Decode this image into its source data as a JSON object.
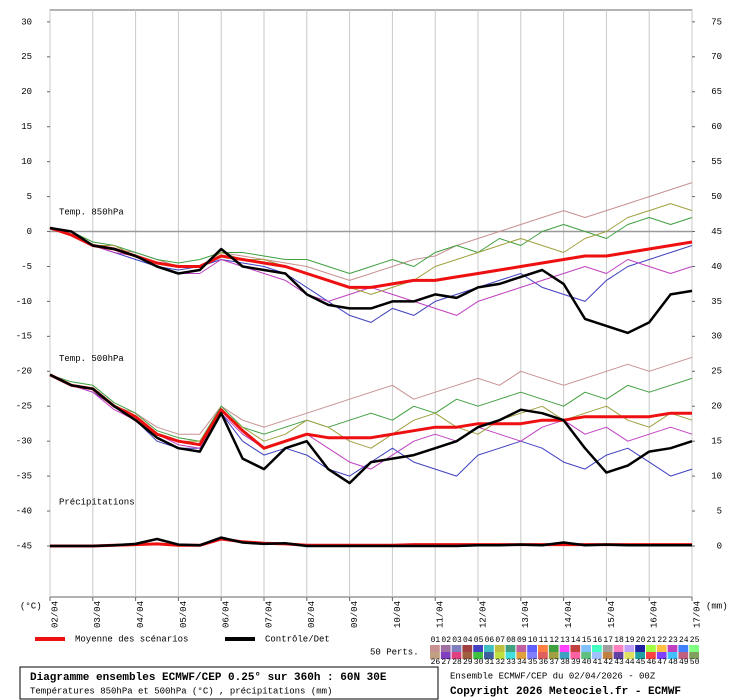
{
  "chart_data": {
    "type": "line",
    "title": "Diagramme ensembles ECMWF/CEP 0.25° sur 360h : 60N 30E",
    "subtitle": "Températures 850hPa et 500hPa (°C) , précipitations (mm)",
    "run_info": "Ensemble ECMWF/CEP du 02/04/2026 - 00Z",
    "copyright": "Copyright 2026 Meteociel.fr - ECMWF",
    "ylabel": "(°C)",
    "y2label": "(mm)",
    "annotations": [
      {
        "text": "Temp. 850hPa",
        "y": 0.5
      },
      {
        "text": "Temp. 500hPa",
        "y": -20.5
      },
      {
        "text": "Précipitations",
        "y": -41
      }
    ],
    "x": [
      0,
      0.5,
      1,
      1.5,
      2,
      2.5,
      3,
      3.5,
      4,
      4.5,
      5,
      5.5,
      6,
      6.5,
      7,
      7.5,
      8,
      8.5,
      9,
      9.5,
      10,
      10.5,
      11,
      11.5,
      12,
      12.5,
      13,
      13.5,
      14,
      14.5,
      15
    ],
    "xlim": [
      0,
      15
    ],
    "xticks": [
      {
        "value": 0,
        "label": "02/04"
      },
      {
        "value": 1,
        "label": "03/04"
      },
      {
        "value": 2,
        "label": "04/04"
      },
      {
        "value": 3,
        "label": "05/04"
      },
      {
        "value": 4,
        "label": "06/04"
      },
      {
        "value": 5,
        "label": "07/04"
      },
      {
        "value": 6,
        "label": "08/04"
      },
      {
        "value": 7,
        "label": "09/04"
      },
      {
        "value": 8,
        "label": "10/04"
      },
      {
        "value": 9,
        "label": "11/04"
      },
      {
        "value": 10,
        "label": "12/04"
      },
      {
        "value": 11,
        "label": "13/04"
      },
      {
        "value": 12,
        "label": "14/04"
      },
      {
        "value": 13,
        "label": "15/04"
      },
      {
        "value": 14,
        "label": "16/04"
      },
      {
        "value": 15,
        "label": "17/04"
      }
    ],
    "ylim": [
      -52.3,
      31.7
    ],
    "yticks": [
      30,
      25,
      20,
      15,
      10,
      5,
      0,
      -5,
      -10,
      -15,
      -20,
      -25,
      -30,
      -35,
      -40,
      -45
    ],
    "y2lim": [
      -7.3,
      76.7
    ],
    "y2ticks": [
      75,
      70,
      65,
      60,
      55,
      50,
      45,
      40,
      35,
      30,
      25,
      20,
      15,
      10,
      5,
      0
    ],
    "reference_line": 0,
    "grid": true,
    "legend": [
      {
        "name": "Moyenne des scénarios",
        "color": "#ee1010"
      },
      {
        "name": "Contrôle/Det",
        "color": "#000000"
      }
    ],
    "perturbation_count_label": "50 Perts.",
    "perturbation_legend": [
      {
        "label": "01",
        "color": "#c89090"
      },
      {
        "label": "02",
        "color": "#a070a0"
      },
      {
        "label": "03",
        "color": "#8080c0"
      },
      {
        "label": "04",
        "color": "#a04040"
      },
      {
        "label": "05",
        "color": "#4040c0"
      },
      {
        "label": "06",
        "color": "#40c0c0"
      },
      {
        "label": "07",
        "color": "#c0c040"
      },
      {
        "label": "08",
        "color": "#40a080"
      },
      {
        "label": "09",
        "color": "#c060a0"
      },
      {
        "label": "10",
        "color": "#6060ff"
      },
      {
        "label": "11",
        "color": "#ff8040"
      },
      {
        "label": "12",
        "color": "#40a040"
      },
      {
        "label": "13",
        "color": "#ff40ff"
      },
      {
        "label": "14",
        "color": "#c04040"
      },
      {
        "label": "15",
        "color": "#80c0ff"
      },
      {
        "label": "16",
        "color": "#40ffc0"
      },
      {
        "label": "17",
        "color": "#a0a0a0"
      },
      {
        "label": "18",
        "color": "#ff80c0"
      },
      {
        "label": "19",
        "color": "#c0a0ff"
      },
      {
        "label": "20",
        "color": "#2020a0"
      },
      {
        "label": "21",
        "color": "#a0ff40"
      },
      {
        "label": "22",
        "color": "#ffc040"
      },
      {
        "label": "23",
        "color": "#c040c0"
      },
      {
        "label": "24",
        "color": "#4080ff"
      },
      {
        "label": "25",
        "color": "#80ff80"
      },
      {
        "label": "26",
        "color": "#c0a080"
      },
      {
        "label": "27",
        "color": "#8040c0"
      },
      {
        "label": "28",
        "color": "#e04080"
      },
      {
        "label": "29",
        "color": "#a06040"
      },
      {
        "label": "30",
        "color": "#40c040"
      },
      {
        "label": "31",
        "color": "#4060a0"
      },
      {
        "label": "32",
        "color": "#c0e040"
      },
      {
        "label": "33",
        "color": "#40e0e0"
      },
      {
        "label": "34",
        "color": "#e0a040"
      },
      {
        "label": "35",
        "color": "#8080ff"
      },
      {
        "label": "36",
        "color": "#e06060"
      },
      {
        "label": "37",
        "color": "#a0a040"
      },
      {
        "label": "38",
        "color": "#40a0c0"
      },
      {
        "label": "39",
        "color": "#ff60a0"
      },
      {
        "label": "40",
        "color": "#60c080"
      },
      {
        "label": "41",
        "color": "#a0c0ff"
      },
      {
        "label": "42",
        "color": "#c08040"
      },
      {
        "label": "43",
        "color": "#6040a0"
      },
      {
        "label": "44",
        "color": "#e0e060"
      },
      {
        "label": "45",
        "color": "#20a0a0"
      },
      {
        "label": "46",
        "color": "#ff4040"
      },
      {
        "label": "47",
        "color": "#8040ff"
      },
      {
        "label": "48",
        "color": "#40c0ff"
      },
      {
        "label": "49",
        "color": "#c06080"
      },
      {
        "label": "50",
        "color": "#80a060"
      }
    ],
    "series": [
      {
        "name": "01",
        "color": "#c89090",
        "width": 1,
        "values": [
          0.5,
          0,
          -2,
          -2.5,
          -3,
          -4,
          -5,
          -5,
          -3,
          -3.5,
          -4,
          -4.5,
          -5,
          -6,
          -7,
          -6,
          -5,
          -4,
          -3.5,
          -2,
          -1,
          0,
          1,
          2,
          3,
          2,
          3,
          4,
          5,
          6,
          7
        ]
      },
      {
        "name": "05",
        "color": "#4040c0",
        "width": 1,
        "values": [
          0.5,
          -0.5,
          -2,
          -3,
          -4,
          -5,
          -5.5,
          -5,
          -4,
          -4.5,
          -5,
          -6,
          -8,
          -10,
          -12,
          -13,
          -11,
          -12,
          -10,
          -9,
          -8,
          -7,
          -6,
          -8,
          -9,
          -10,
          -7,
          -5,
          -4,
          -3,
          -2
        ]
      },
      {
        "name": "12",
        "color": "#40a040",
        "width": 1,
        "values": [
          0.5,
          0,
          -1.5,
          -2,
          -3,
          -4,
          -4.5,
          -4,
          -3,
          -3,
          -3.5,
          -4,
          -4,
          -5,
          -6,
          -5,
          -4,
          -5,
          -3,
          -2,
          -3,
          -1,
          -2,
          0,
          1,
          0,
          -1,
          1,
          2,
          1,
          2
        ]
      },
      {
        "name": "23",
        "color": "#c040c0",
        "width": 1,
        "values": [
          0.5,
          -0.5,
          -2,
          -3,
          -3.5,
          -5,
          -6,
          -6,
          -4,
          -5,
          -6,
          -7,
          -9,
          -10,
          -9,
          -8,
          -9,
          -10,
          -11,
          -12,
          -10,
          -9,
          -8,
          -7,
          -6,
          -5,
          -6,
          -4,
          -5,
          -6,
          -5
        ]
      },
      {
        "name": "37",
        "color": "#a0a040",
        "width": 1,
        "values": [
          0.5,
          0,
          -2,
          -2,
          -3.5,
          -4.5,
          -5,
          -5,
          -3,
          -4,
          -4,
          -5,
          -6,
          -7,
          -8,
          -9,
          -8,
          -7,
          -5,
          -4,
          -3,
          -2,
          -1,
          -2,
          -3,
          -1,
          0,
          2,
          3,
          4,
          3
        ]
      },
      {
        "name": "01",
        "color": "#c89090",
        "width": 1,
        "values": [
          -20.5,
          -22,
          -22.5,
          -25,
          -26,
          -28,
          -29,
          -29,
          -25,
          -27,
          -28,
          -27,
          -26,
          -25,
          -24,
          -23,
          -22,
          -24,
          -23,
          -22,
          -21,
          -22,
          -20,
          -21,
          -22,
          -21,
          -20,
          -19,
          -20,
          -19,
          -18
        ]
      },
      {
        "name": "05",
        "color": "#4040c0",
        "width": 1,
        "values": [
          -20.5,
          -22,
          -23,
          -25,
          -27,
          -30,
          -31,
          -31,
          -26,
          -30,
          -32,
          -31,
          -32,
          -34,
          -35,
          -33,
          -31,
          -33,
          -34,
          -35,
          -32,
          -31,
          -30,
          -31,
          -33,
          -34,
          -32,
          -31,
          -33,
          -35,
          -34
        ]
      },
      {
        "name": "12",
        "color": "#40a040",
        "width": 1,
        "values": [
          -20.5,
          -21.5,
          -22,
          -24.5,
          -26,
          -28.5,
          -29.5,
          -30,
          -25,
          -28,
          -29,
          -28,
          -27,
          -28,
          -27,
          -26,
          -27,
          -25,
          -26,
          -24,
          -25,
          -24,
          -23,
          -24,
          -25,
          -23,
          -24,
          -22,
          -23,
          -22,
          -21
        ]
      },
      {
        "name": "23",
        "color": "#c040c0",
        "width": 1,
        "values": [
          -20.5,
          -22,
          -23,
          -25.5,
          -27,
          -29,
          -30.5,
          -31,
          -26,
          -29,
          -31,
          -30,
          -29,
          -31,
          -33,
          -34,
          -32,
          -30,
          -29,
          -30,
          -28,
          -29,
          -30,
          -28,
          -27,
          -29,
          -28,
          -30,
          -29,
          -28,
          -29
        ]
      },
      {
        "name": "37",
        "color": "#a0a040",
        "width": 1,
        "values": [
          -20.5,
          -22,
          -22.5,
          -25,
          -26.5,
          -29,
          -30,
          -30,
          -25.5,
          -28,
          -30,
          -29,
          -27,
          -28,
          -30,
          -31,
          -29,
          -27,
          -26,
          -28,
          -29,
          -27,
          -26,
          -25,
          -27,
          -26,
          -25,
          -27,
          -28,
          -26,
          -27
        ]
      },
      {
        "name": "Moyenne des scénarios",
        "color": "#ee1010",
        "width": 3,
        "values": [
          0.5,
          -0.5,
          -2,
          -2.5,
          -3.5,
          -4.5,
          -5,
          -5,
          -3.5,
          -4,
          -4.5,
          -5,
          -6,
          -7,
          -8,
          -8,
          -7.5,
          -7,
          -7,
          -6.5,
          -6,
          -5.5,
          -5,
          -4.5,
          -4,
          -3.5,
          -3.5,
          -3,
          -2.5,
          -2,
          -1.5
        ]
      },
      {
        "name": "Moyenne des scénarios",
        "color": "#ee1010",
        "width": 3,
        "values": [
          -20.5,
          -22,
          -22.5,
          -25,
          -26.5,
          -29,
          -30,
          -30.5,
          -25.5,
          -28.5,
          -31,
          -30,
          -29,
          -29.5,
          -29.5,
          -29.5,
          -29,
          -28.5,
          -28,
          -28,
          -27.5,
          -27.5,
          -27.5,
          -27,
          -27,
          -26.5,
          -26.5,
          -26.5,
          -26.5,
          -26,
          -26
        ]
      },
      {
        "name": "Moyenne des scénarios",
        "color": "#ee1010",
        "width": 3,
        "axis": "y2",
        "values": [
          0,
          0,
          0,
          0.1,
          0.2,
          0.3,
          0.1,
          0.1,
          1,
          0.6,
          0.4,
          0.3,
          0.1,
          0.1,
          0.1,
          0.1,
          0.1,
          0.2,
          0.2,
          0.2,
          0.2,
          0.2,
          0.2,
          0.2,
          0.2,
          0.2,
          0.2,
          0.2,
          0.2,
          0.2,
          0.2
        ]
      },
      {
        "name": "Contrôle/Det",
        "color": "#000000",
        "width": 2.5,
        "values": [
          0.5,
          0,
          -2,
          -2.5,
          -3.5,
          -5,
          -6,
          -5.5,
          -2.5,
          -5,
          -5.5,
          -6,
          -9,
          -10.5,
          -11,
          -11,
          -10,
          -10,
          -9,
          -9.5,
          -8,
          -7.5,
          -6.5,
          -5.5,
          -7.5,
          -12.5,
          -13.5,
          -14.5,
          -13,
          -9,
          -8.5
        ]
      },
      {
        "name": "Contrôle/Det",
        "color": "#000000",
        "width": 2.5,
        "values": [
          -20.5,
          -22,
          -22.5,
          -25,
          -27,
          -29.5,
          -31,
          -31.5,
          -26,
          -32.5,
          -34,
          -31,
          -30,
          -34,
          -36,
          -33,
          -32.5,
          -32,
          -31,
          -30,
          -28,
          -27,
          -25.5,
          -26,
          -27,
          -31,
          -34.5,
          -33.5,
          -31.5,
          -31,
          -30
        ]
      },
      {
        "name": "Contrôle/Det",
        "color": "#000000",
        "width": 2.5,
        "axis": "y2",
        "values": [
          0,
          0,
          0,
          0.1,
          0.3,
          1,
          0.2,
          0.1,
          1.2,
          0.5,
          0.3,
          0.4,
          0,
          0,
          0,
          0,
          0,
          0,
          0,
          0,
          0.1,
          0.1,
          0.2,
          0.1,
          0.5,
          0.1,
          0.2,
          0.1,
          0.1,
          0.1,
          0.1
        ]
      }
    ]
  }
}
